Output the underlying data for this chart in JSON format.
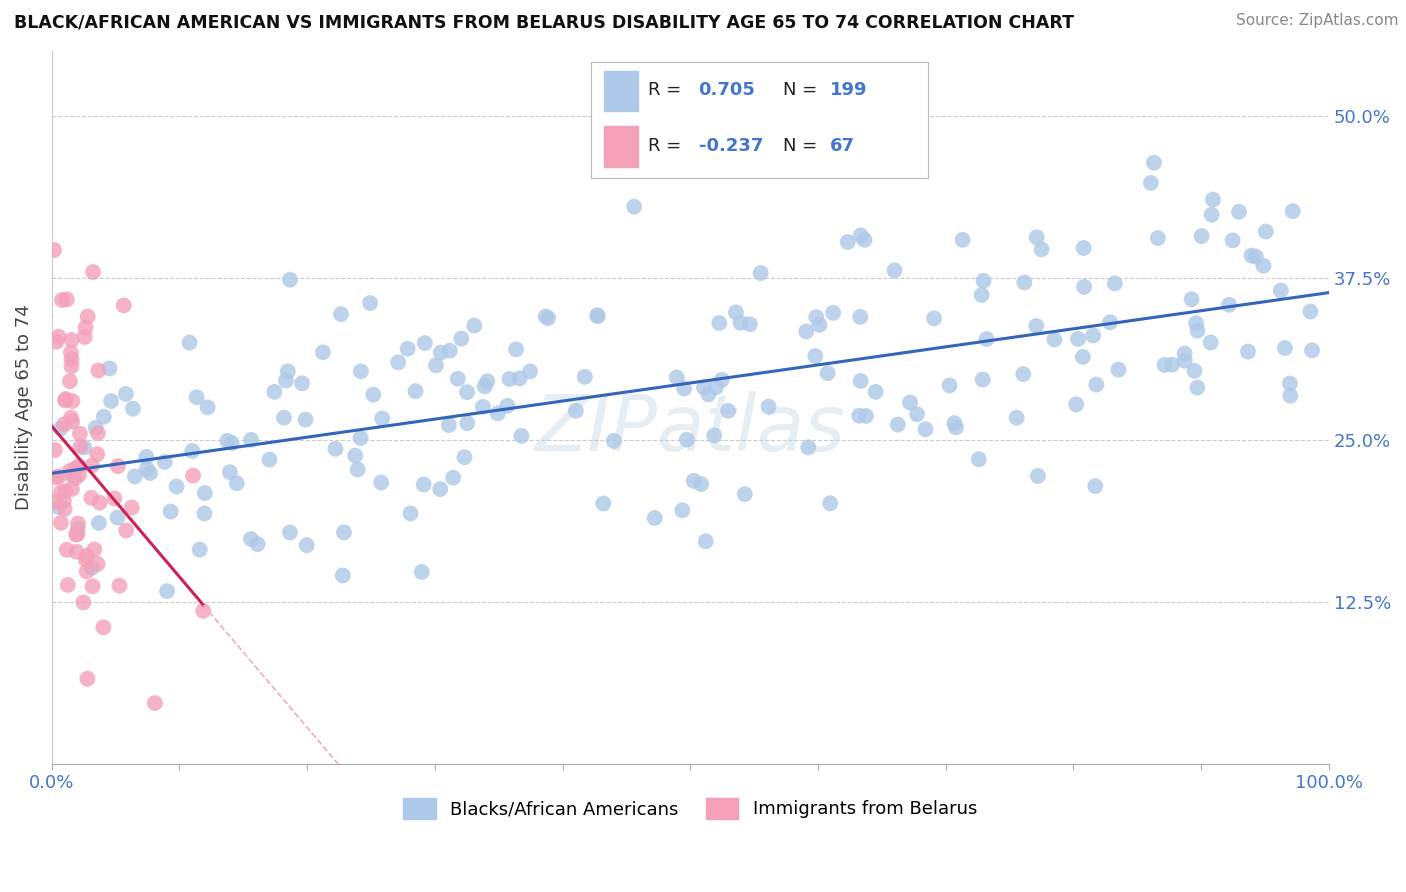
{
  "title": "BLACK/AFRICAN AMERICAN VS IMMIGRANTS FROM BELARUS DISABILITY AGE 65 TO 74 CORRELATION CHART",
  "source_text": "Source: ZipAtlas.com",
  "ylabel": "Disability Age 65 to 74",
  "watermark": "ZIPatlas",
  "blue_R": 0.705,
  "blue_N": 199,
  "pink_R": -0.237,
  "pink_N": 67,
  "blue_color": "#adc8e8",
  "blue_line_color": "#3366bb",
  "pink_color": "#f4a0b8",
  "pink_line_color": "#cc2255",
  "pink_line_dashed_color": "#e8b0c0",
  "title_color": "#111111",
  "title_fontsize": 12.5,
  "tick_color": "#4477cc",
  "xlim": [
    0.0,
    1.0
  ],
  "ylim": [
    0.0,
    0.55
  ],
  "ytick_vals": [
    0.0,
    0.125,
    0.25,
    0.375,
    0.5
  ],
  "ytick_labels_right": [
    "",
    "12.5%",
    "25.0%",
    "37.5%",
    "50.0%"
  ],
  "grid_color": "#cccccc",
  "background_color": "#ffffff",
  "blue_seed": 42,
  "pink_seed": 123,
  "bottom_legend_labels": [
    "Blacks/African Americans",
    "Immigrants from Belarus"
  ]
}
